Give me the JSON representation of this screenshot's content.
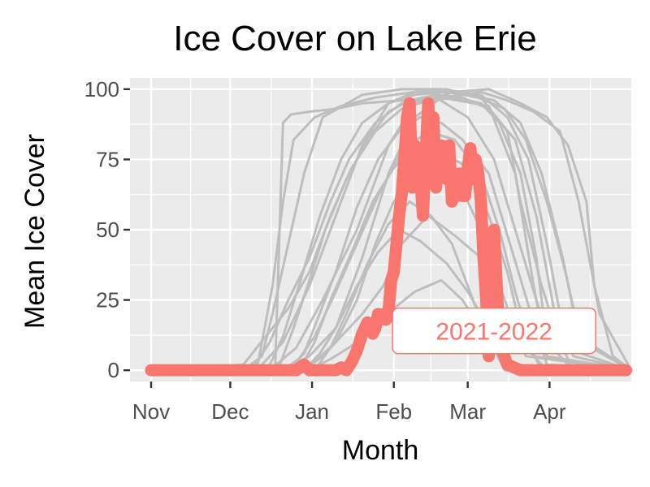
{
  "chart_data": {
    "type": "line",
    "title": "Ice Cover on Lake Erie",
    "xlabel": "Month",
    "ylabel": "Mean Ice Cover",
    "x_ticks": [
      "Nov",
      "Dec",
      "Jan",
      "Feb",
      "Mar",
      "Apr"
    ],
    "x_tick_positions_days": [
      0,
      30,
      61,
      92,
      120,
      151
    ],
    "xlim_days": [
      -8,
      182
    ],
    "ylim": [
      -4,
      104
    ],
    "y_ticks": [
      0,
      25,
      50,
      75,
      100
    ],
    "grid": true,
    "background_color": "#ebebeb",
    "history_color": "#bebebe",
    "highlight_color": "#f8766d",
    "annotation": {
      "text": "2021-2022",
      "x_day": 130,
      "y": 14
    },
    "highlight_series": {
      "name": "2021-2022",
      "x_days": [
        0,
        20,
        40,
        50,
        55,
        58,
        60,
        62,
        64,
        66,
        68,
        70,
        72,
        74,
        76,
        78,
        80,
        82,
        84,
        85,
        86,
        87,
        88,
        89,
        90,
        91,
        92,
        93,
        94,
        95,
        96,
        97,
        98,
        99,
        100,
        101,
        102,
        103,
        104,
        105,
        106,
        107,
        108,
        109,
        110,
        111,
        112,
        113,
        114,
        115,
        116,
        117,
        118,
        119,
        120,
        121,
        122,
        123,
        124,
        125,
        126,
        127,
        128,
        130,
        132,
        135,
        140,
        145,
        150,
        160,
        170,
        180
      ],
      "values": [
        0,
        0,
        0,
        0,
        0,
        2,
        0,
        0,
        0,
        0,
        0,
        0,
        1,
        0,
        3,
        7,
        13,
        17,
        13,
        15,
        20,
        18,
        20,
        18,
        21,
        32,
        35,
        45,
        55,
        63,
        75,
        90,
        95,
        65,
        80,
        75,
        70,
        55,
        75,
        95,
        80,
        90,
        65,
        78,
        80,
        70,
        68,
        80,
        60,
        70,
        62,
        70,
        62,
        62,
        72,
        79,
        68,
        75,
        70,
        60,
        40,
        25,
        5,
        50,
        10,
        2,
        0,
        0,
        0,
        0,
        0,
        0
      ]
    },
    "history_series": [
      {
        "x_days": [
          0,
          35,
          42,
          46,
          52,
          58,
          65,
          80,
          95,
          110,
          125,
          135,
          143,
          150,
          155,
          160,
          182
        ],
        "values": [
          0,
          0,
          5,
          20,
          45,
          70,
          90,
          98,
          100,
          100,
          98,
          90,
          75,
          45,
          20,
          5,
          0
        ]
      },
      {
        "x_days": [
          0,
          40,
          50,
          60,
          70,
          80,
          90,
          100,
          112,
          125,
          135,
          140,
          148,
          155,
          160,
          182
        ],
        "values": [
          0,
          0,
          10,
          30,
          55,
          80,
          95,
          99,
          100,
          97,
          85,
          60,
          30,
          10,
          0,
          0
        ]
      },
      {
        "x_days": [
          0,
          47,
          50,
          53,
          60,
          70,
          80,
          95,
          110,
          128,
          138,
          145,
          150,
          182
        ],
        "values": [
          0,
          0,
          88,
          91,
          92,
          93,
          95,
          96,
          97,
          94,
          70,
          30,
          5,
          0
        ]
      },
      {
        "x_days": [
          0,
          45,
          55,
          65,
          78,
          90,
          100,
          115,
          128,
          140,
          150,
          158,
          165,
          168,
          175,
          182
        ],
        "values": [
          0,
          0,
          8,
          25,
          50,
          80,
          95,
          99,
          100,
          95,
          90,
          80,
          60,
          30,
          5,
          0
        ]
      },
      {
        "x_days": [
          0,
          50,
          60,
          70,
          80,
          90,
          100,
          110,
          125,
          135,
          145,
          155,
          162,
          170,
          182
        ],
        "values": [
          0,
          0,
          5,
          15,
          40,
          70,
          90,
          97,
          99,
          96,
          92,
          85,
          60,
          20,
          0
        ]
      },
      {
        "x_days": [
          0,
          38,
          45,
          52,
          60,
          68,
          75,
          85,
          95,
          108,
          120,
          130,
          138,
          146,
          152,
          160,
          182
        ],
        "values": [
          0,
          0,
          10,
          25,
          40,
          60,
          75,
          88,
          95,
          97,
          90,
          75,
          50,
          25,
          8,
          0,
          0
        ]
      },
      {
        "x_days": [
          0,
          55,
          62,
          70,
          78,
          85,
          92,
          100,
          110,
          120,
          128,
          135,
          140,
          148,
          182
        ],
        "values": [
          0,
          0,
          3,
          10,
          25,
          45,
          60,
          70,
          78,
          72,
          55,
          35,
          15,
          0,
          0
        ]
      },
      {
        "x_days": [
          0,
          58,
          65,
          72,
          80,
          88,
          95,
          105,
          115,
          125,
          132,
          140,
          150,
          182
        ],
        "values": [
          0,
          0,
          5,
          12,
          20,
          30,
          45,
          55,
          48,
          40,
          25,
          10,
          0,
          0
        ]
      },
      {
        "x_days": [
          0,
          60,
          68,
          75,
          85,
          92,
          100,
          110,
          118,
          125,
          130,
          140,
          182
        ],
        "values": [
          0,
          0,
          4,
          8,
          15,
          22,
          28,
          32,
          25,
          15,
          8,
          0,
          0
        ]
      },
      {
        "x_days": [
          0,
          35,
          40,
          46,
          52,
          60,
          68,
          76,
          85,
          95,
          105,
          115,
          125,
          132,
          140,
          146,
          150,
          182
        ],
        "values": [
          0,
          2,
          8,
          15,
          22,
          35,
          55,
          72,
          85,
          93,
          96,
          97,
          95,
          88,
          70,
          40,
          10,
          0
        ]
      },
      {
        "x_days": [
          0,
          52,
          58,
          63,
          70,
          78,
          86,
          94,
          102,
          110,
          118,
          128,
          136,
          144,
          150,
          182
        ],
        "values": [
          0,
          0,
          6,
          18,
          35,
          58,
          75,
          85,
          90,
          88,
          82,
          70,
          45,
          20,
          2,
          0
        ]
      },
      {
        "x_days": [
          0,
          44,
          50,
          56,
          64,
          72,
          80,
          90,
          100,
          112,
          124,
          134,
          142,
          150,
          157,
          163,
          182
        ],
        "values": [
          0,
          0,
          12,
          30,
          55,
          75,
          88,
          95,
          98,
          99,
          97,
          93,
          82,
          60,
          35,
          10,
          0
        ]
      },
      {
        "x_days": [
          0,
          62,
          68,
          74,
          82,
          90,
          98,
          106,
          114,
          120,
          126,
          134,
          182
        ],
        "values": [
          0,
          0,
          8,
          20,
          38,
          52,
          60,
          55,
          45,
          30,
          15,
          0,
          0
        ]
      },
      {
        "x_days": [
          0,
          50,
          56,
          62,
          70,
          78,
          86,
          95,
          105,
          115,
          125,
          132,
          138,
          145,
          182
        ],
        "values": [
          0,
          0,
          4,
          12,
          28,
          45,
          62,
          78,
          85,
          82,
          70,
          50,
          28,
          5,
          0
        ]
      },
      {
        "x_days": [
          0,
          40,
          46,
          50,
          54,
          62,
          72,
          85,
          100,
          115,
          130,
          140,
          148,
          156,
          162,
          182
        ],
        "values": [
          0,
          0,
          30,
          60,
          82,
          90,
          94,
          97,
          99,
          99,
          96,
          88,
          70,
          40,
          12,
          0
        ]
      },
      {
        "x_days": [
          0,
          56,
          62,
          68,
          76,
          84,
          92,
          100,
          108,
          118,
          126,
          134,
          142,
          182
        ],
        "values": [
          0,
          0,
          10,
          25,
          42,
          60,
          72,
          80,
          76,
          64,
          48,
          25,
          5,
          0
        ]
      },
      {
        "x_days": [
          0,
          48,
          54,
          60,
          66,
          74,
          82,
          90,
          98,
          108,
          118,
          128,
          138,
          146,
          154,
          182
        ],
        "values": [
          0,
          0,
          15,
          32,
          50,
          68,
          82,
          92,
          96,
          98,
          97,
          93,
          82,
          55,
          15,
          0
        ]
      },
      {
        "x_days": [
          0,
          58,
          64,
          70,
          78,
          86,
          94,
          102,
          112,
          120,
          128,
          136,
          182
        ],
        "values": [
          0,
          0,
          6,
          15,
          30,
          42,
          50,
          46,
          38,
          28,
          15,
          2,
          0
        ]
      }
    ]
  }
}
